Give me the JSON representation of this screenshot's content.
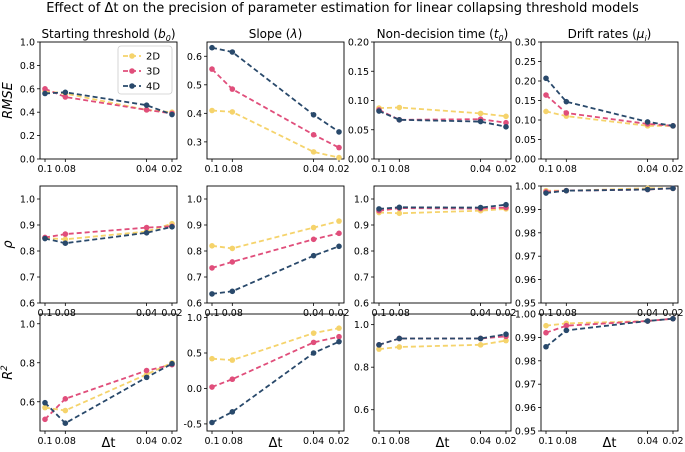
{
  "title": "Effect of Δt on the precision of parameter estimation for linear collapsing threshold models",
  "colors": {
    "2D": "#f5d36b",
    "3D": "#e04e7b",
    "4D": "#29496b"
  },
  "columns": [
    {
      "title": "Starting threshold",
      "sym": "b",
      "sub": "0"
    },
    {
      "title": "Slope",
      "sym": "λ",
      "sub": ""
    },
    {
      "title": "Non-decision time",
      "sym": "t",
      "sub": "0"
    },
    {
      "title": "Drift rates",
      "sym": "μ",
      "sub": "i"
    }
  ],
  "row_labels": [
    {
      "text": "RMSE",
      "sup": ""
    },
    {
      "text": "ρ",
      "sup": ""
    },
    {
      "text": "R",
      "sup": "2"
    }
  ],
  "xlabel": "Δt",
  "legend": [
    "2D",
    "3D",
    "4D"
  ],
  "chart_data": [
    {
      "type": "line",
      "row": 0,
      "col": 0,
      "x": [
        0.1,
        0.08,
        0.04,
        0.02
      ],
      "ylim": [
        0.0,
        1.0
      ],
      "yticks": [
        "0.0",
        "0.2",
        "0.4",
        "0.6",
        "0.8",
        "1.0"
      ],
      "xticks": [
        "0.1",
        "0.08",
        "0.04",
        "0.02"
      ],
      "series": [
        {
          "name": "2D",
          "values": [
            0.58,
            0.56,
            0.42,
            0.4
          ]
        },
        {
          "name": "3D",
          "values": [
            0.6,
            0.53,
            0.42,
            0.39
          ]
        },
        {
          "name": "4D",
          "values": [
            0.56,
            0.57,
            0.46,
            0.38
          ]
        }
      ]
    },
    {
      "type": "line",
      "row": 0,
      "col": 1,
      "x": [
        0.1,
        0.08,
        0.04,
        0.02
      ],
      "ylim": [
        0.24,
        0.65
      ],
      "yticks": [
        "0.3",
        "0.4",
        "0.5",
        "0.6"
      ],
      "xticks": [
        "0.1",
        "0.08",
        "0.04",
        "0.02"
      ],
      "series": [
        {
          "name": "2D",
          "values": [
            0.41,
            0.405,
            0.265,
            0.245
          ]
        },
        {
          "name": "3D",
          "values": [
            0.555,
            0.485,
            0.325,
            0.28
          ]
        },
        {
          "name": "4D",
          "values": [
            0.63,
            0.615,
            0.395,
            0.335
          ]
        }
      ]
    },
    {
      "type": "line",
      "row": 0,
      "col": 2,
      "x": [
        0.1,
        0.08,
        0.04,
        0.02
      ],
      "ylim": [
        0.0,
        0.2
      ],
      "yticks": [
        "0.00",
        "0.05",
        "0.10",
        "0.15",
        "0.20"
      ],
      "xticks": [
        "0.1",
        "0.08",
        "0.04",
        "0.02"
      ],
      "series": [
        {
          "name": "2D",
          "values": [
            0.087,
            0.088,
            0.078,
            0.073
          ]
        },
        {
          "name": "3D",
          "values": [
            0.084,
            0.067,
            0.068,
            0.062
          ]
        },
        {
          "name": "4D",
          "values": [
            0.082,
            0.067,
            0.064,
            0.055
          ]
        }
      ]
    },
    {
      "type": "line",
      "row": 0,
      "col": 3,
      "x": [
        0.1,
        0.08,
        0.04,
        0.02
      ],
      "ylim": [
        0.0,
        0.3
      ],
      "yticks": [
        "0.00",
        "0.05",
        "0.10",
        "0.15",
        "0.20",
        "0.25",
        "0.30"
      ],
      "xticks": [
        "0.1",
        "0.08",
        "0.04",
        "0.02"
      ],
      "series": [
        {
          "name": "2D",
          "values": [
            0.122,
            0.11,
            0.085,
            0.085
          ]
        },
        {
          "name": "3D",
          "values": [
            0.164,
            0.118,
            0.09,
            0.085
          ]
        },
        {
          "name": "4D",
          "values": [
            0.207,
            0.147,
            0.095,
            0.085
          ]
        }
      ]
    },
    {
      "type": "line",
      "row": 1,
      "col": 0,
      "x": [
        0.1,
        0.08,
        0.04,
        0.02
      ],
      "ylim": [
        0.6,
        1.05
      ],
      "yticks": [
        "0.6",
        "0.7",
        "0.8",
        "0.9",
        "1.0"
      ],
      "xticks": [
        "0.1",
        "0.08",
        "0.04",
        "0.02"
      ],
      "series": [
        {
          "name": "2D",
          "values": [
            0.85,
            0.845,
            0.875,
            0.905
          ]
        },
        {
          "name": "3D",
          "values": [
            0.852,
            0.865,
            0.89,
            0.895
          ]
        },
        {
          "name": "4D",
          "values": [
            0.848,
            0.83,
            0.87,
            0.893
          ]
        }
      ]
    },
    {
      "type": "line",
      "row": 1,
      "col": 1,
      "x": [
        0.1,
        0.08,
        0.04,
        0.02
      ],
      "ylim": [
        0.6,
        1.05
      ],
      "yticks": [
        "0.6",
        "0.7",
        "0.8",
        "0.9",
        "1.0"
      ],
      "xticks": [
        "0.1",
        "0.08",
        "0.04",
        "0.02"
      ],
      "series": [
        {
          "name": "2D",
          "values": [
            0.82,
            0.81,
            0.89,
            0.915
          ]
        },
        {
          "name": "3D",
          "values": [
            0.735,
            0.758,
            0.845,
            0.868
          ]
        },
        {
          "name": "4D",
          "values": [
            0.635,
            0.645,
            0.782,
            0.818
          ]
        }
      ]
    },
    {
      "type": "line",
      "row": 1,
      "col": 2,
      "x": [
        0.1,
        0.08,
        0.04,
        0.02
      ],
      "ylim": [
        0.6,
        1.05
      ],
      "yticks": [
        "0.6",
        "0.7",
        "0.8",
        "0.9",
        "1.0"
      ],
      "xticks": [
        "0.1",
        "0.08",
        "0.04",
        "0.02"
      ],
      "series": [
        {
          "name": "2D",
          "values": [
            0.948,
            0.945,
            0.955,
            0.962
          ]
        },
        {
          "name": "3D",
          "values": [
            0.955,
            0.965,
            0.963,
            0.967
          ]
        },
        {
          "name": "4D",
          "values": [
            0.962,
            0.968,
            0.967,
            0.978
          ]
        }
      ]
    },
    {
      "type": "line",
      "row": 1,
      "col": 3,
      "x": [
        0.1,
        0.08,
        0.04,
        0.02
      ],
      "ylim": [
        0.95,
        1.0
      ],
      "yticks": [
        "0.95",
        "0.96",
        "0.97",
        "0.98",
        "0.99",
        "1.00"
      ],
      "xticks": [
        "0.1",
        "0.08",
        "0.04",
        "0.02"
      ],
      "series": [
        {
          "name": "2D",
          "values": [
            0.998,
            0.998,
            0.999,
            0.999
          ]
        },
        {
          "name": "3D",
          "values": [
            0.9975,
            0.998,
            0.9985,
            0.999
          ]
        },
        {
          "name": "4D",
          "values": [
            0.997,
            0.998,
            0.9985,
            0.999
          ]
        }
      ]
    },
    {
      "type": "line",
      "row": 2,
      "col": 0,
      "x": [
        0.1,
        0.08,
        0.04,
        0.02
      ],
      "ylim": [
        0.45,
        1.05
      ],
      "yticks": [
        "0.6",
        "0.8",
        "1.0"
      ],
      "xticks": [
        "0.1",
        "0.08",
        "0.04",
        "0.02"
      ],
      "series": [
        {
          "name": "2D",
          "values": [
            0.57,
            0.555,
            0.74,
            0.8
          ]
        },
        {
          "name": "3D",
          "values": [
            0.51,
            0.615,
            0.76,
            0.79
          ]
        },
        {
          "name": "4D",
          "values": [
            0.595,
            0.49,
            0.725,
            0.795
          ]
        }
      ]
    },
    {
      "type": "line",
      "row": 2,
      "col": 1,
      "x": [
        0.1,
        0.08,
        0.04,
        0.02
      ],
      "ylim": [
        -0.6,
        1.05
      ],
      "yticks": [
        "-0.5",
        "0.0",
        "0.5",
        "1.0"
      ],
      "xticks": [
        "0.1",
        "0.08",
        "0.04",
        "0.02"
      ],
      "series": [
        {
          "name": "2D",
          "values": [
            0.42,
            0.4,
            0.78,
            0.85
          ]
        },
        {
          "name": "3D",
          "values": [
            0.02,
            0.13,
            0.65,
            0.73
          ]
        },
        {
          "name": "4D",
          "values": [
            -0.48,
            -0.33,
            0.5,
            0.66
          ]
        }
      ]
    },
    {
      "type": "line",
      "row": 2,
      "col": 2,
      "x": [
        0.1,
        0.08,
        0.04,
        0.02
      ],
      "ylim": [
        0.5,
        1.05
      ],
      "yticks": [
        "0.6",
        "0.8",
        "1.0"
      ],
      "xticks": [
        "0.1",
        "0.08",
        "0.04",
        "0.02"
      ],
      "series": [
        {
          "name": "2D",
          "values": [
            0.885,
            0.895,
            0.905,
            0.925
          ]
        },
        {
          "name": "3D",
          "values": [
            0.905,
            0.935,
            0.935,
            0.945
          ]
        },
        {
          "name": "4D",
          "values": [
            0.905,
            0.935,
            0.935,
            0.955
          ]
        }
      ]
    },
    {
      "type": "line",
      "row": 2,
      "col": 3,
      "x": [
        0.1,
        0.08,
        0.04,
        0.02
      ],
      "ylim": [
        0.95,
        1.0
      ],
      "yticks": [
        "0.95",
        "0.96",
        "0.97",
        "0.98",
        "0.99",
        "1.00"
      ],
      "xticks": [
        "0.1",
        "0.08",
        "0.04",
        "0.02"
      ],
      "series": [
        {
          "name": "2D",
          "values": [
            0.995,
            0.996,
            0.997,
            0.998
          ]
        },
        {
          "name": "3D",
          "values": [
            0.992,
            0.995,
            0.997,
            0.998
          ]
        },
        {
          "name": "4D",
          "values": [
            0.986,
            0.993,
            0.997,
            0.998
          ]
        }
      ]
    }
  ]
}
